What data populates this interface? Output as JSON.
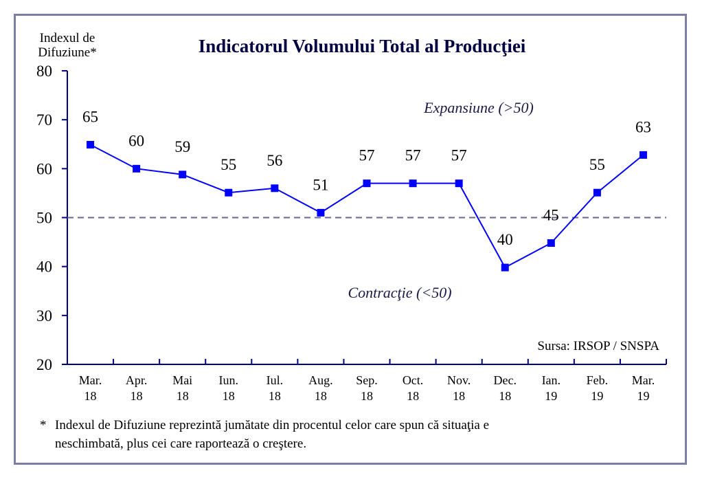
{
  "chart_data": {
    "type": "line",
    "title": "Indicatorul Volumului Total al Producţiei",
    "ylabel_line1": "Indexul de",
    "ylabel_line2": "Difuziune*",
    "ylim": [
      20,
      80
    ],
    "yticks": [
      "20",
      "30",
      "40",
      "50",
      "60",
      "70",
      "80"
    ],
    "categories": [
      [
        "Mar.",
        "18"
      ],
      [
        "Apr.",
        "18"
      ],
      [
        "Mai",
        "18"
      ],
      [
        "Iun.",
        "18"
      ],
      [
        "Iul.",
        "18"
      ],
      [
        "Aug.",
        "18"
      ],
      [
        "Sep.",
        "18"
      ],
      [
        "Oct.",
        "18"
      ],
      [
        "Nov.",
        "18"
      ],
      [
        "Dec.",
        "18"
      ],
      [
        "Ian.",
        "19"
      ],
      [
        "Feb.",
        "19"
      ],
      [
        "Mar.",
        "19"
      ]
    ],
    "values": [
      64.9,
      60,
      58.8,
      55.1,
      56,
      51,
      57,
      57,
      57,
      39.8,
      44.8,
      55.1,
      62.8
    ],
    "data_labels": [
      "65",
      "60",
      "59",
      "55",
      "56",
      "51",
      "57",
      "57",
      "57",
      "40",
      "45",
      "55",
      "63"
    ],
    "reference_line": 50,
    "annotation_above": "Expansiune (>50)",
    "annotation_below": "Contracţie (<50)",
    "source": "Sursa: IRSOP / SNSPA",
    "footnote_marker": "*",
    "footnote_line1": "Indexul de Difuziune reprezintă jumătate din procentul celor care spun că situaţia e",
    "footnote_line2": "neschimbată, plus cei care raportează o creştere.",
    "colors": {
      "series": "#0000ff",
      "axis": "#000080",
      "reference": "#666699",
      "frame": "#7b7fa8",
      "text": "#000000",
      "title": "#000040"
    }
  }
}
